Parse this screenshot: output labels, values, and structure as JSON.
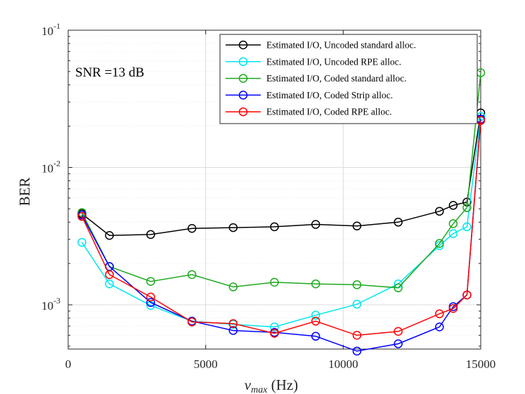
{
  "chart_data": {
    "type": "line",
    "title": "",
    "xlabel": "ν_max (Hz)",
    "ylabel": "BER",
    "xscale": "linear",
    "yscale": "log",
    "xlim": [
      0,
      15000
    ],
    "ylim": [
      0.00045,
      0.1
    ],
    "grid": true,
    "legend_position": "top-right",
    "xticks": [
      0,
      5000,
      10000,
      15000
    ],
    "xtick_labels": [
      "0",
      "5000",
      "10000",
      "15000"
    ],
    "yticks": [
      0.001,
      0.01,
      0.1
    ],
    "ytick_labels": [
      {
        "base": "10",
        "exp": "-3"
      },
      {
        "base": "10",
        "exp": "-2"
      },
      {
        "base": "10",
        "exp": "-1"
      }
    ],
    "annotation": "SNR =13 dB",
    "x": [
      500,
      1500,
      3000,
      4500,
      6000,
      7500,
      9000,
      10500,
      12000,
      13500,
      14000,
      14500,
      15000
    ],
    "series": [
      {
        "name": "Estimated I/O, Uncoded standard alloc.",
        "color": "#000000",
        "values": [
          0.0046,
          0.0032,
          0.00325,
          0.0036,
          0.00365,
          0.0037,
          0.00385,
          0.00375,
          0.004,
          0.0048,
          0.0053,
          0.0056,
          0.025
        ]
      },
      {
        "name": "Estimated I/O, Uncoded RPE alloc.",
        "color": "#00e5ee",
        "values": [
          0.00285,
          0.00142,
          0.00099,
          0.00076,
          0.00072,
          0.00069,
          0.00084,
          0.00101,
          0.00142,
          0.0027,
          0.0033,
          0.0037,
          0.0235
        ]
      },
      {
        "name": "Estimated I/O, Coded standard alloc.",
        "color": "#1fa81f",
        "values": [
          0.0047,
          0.0019,
          0.00148,
          0.00166,
          0.00135,
          0.00146,
          0.00142,
          0.0014,
          0.00133,
          0.0028,
          0.0039,
          0.0051,
          0.049
        ]
      },
      {
        "name": "Estimated I/O, Coded Strip alloc.",
        "color": "#0000ff",
        "values": [
          0.0045,
          0.0019,
          0.00104,
          0.00076,
          0.00065,
          0.00063,
          0.00059,
          0.00046,
          0.00052,
          0.00069,
          0.00097,
          0.00118,
          0.0225
        ]
      },
      {
        "name": "Estimated I/O, Coded RPE alloc.",
        "color": "#ff0000",
        "values": [
          0.0044,
          0.00166,
          0.00114,
          0.00075,
          0.00073,
          0.00062,
          0.00076,
          0.0006,
          0.00064,
          0.00086,
          0.00094,
          0.00118,
          0.022
        ]
      }
    ]
  }
}
